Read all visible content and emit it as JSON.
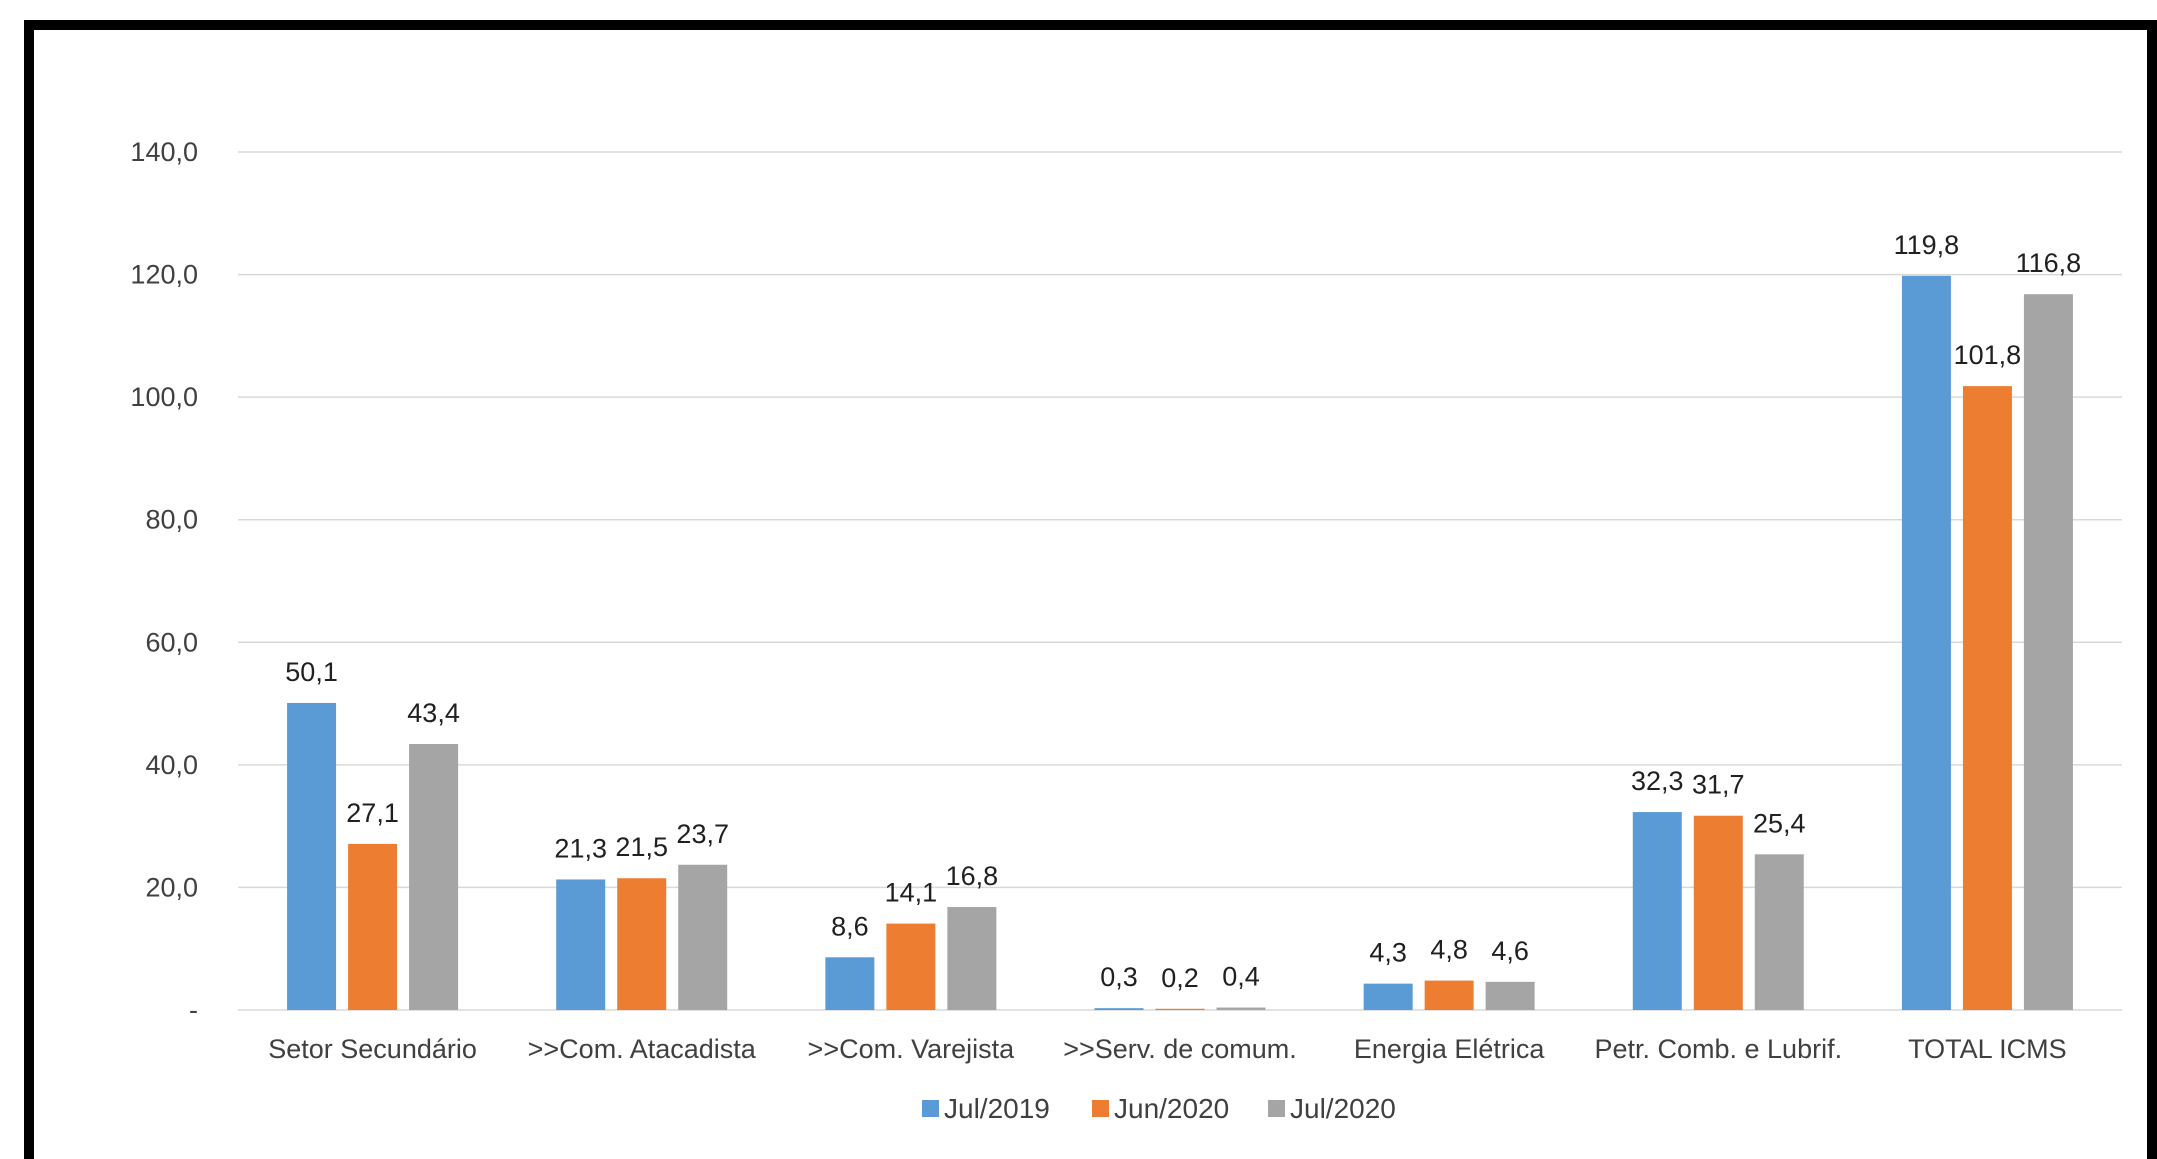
{
  "chart_data": {
    "type": "bar",
    "categories": [
      "Setor Secundário",
      ">>Com. Atacadista",
      ">>Com. Varejista",
      ">>Serv. de comum.",
      "Energia Elétrica",
      "Petr. Comb. e Lubrif.",
      "TOTAL ICMS"
    ],
    "series": [
      {
        "name": "Jul/2019",
        "color": "#5B9BD5",
        "values": [
          50.1,
          21.3,
          8.6,
          0.3,
          4.3,
          32.3,
          119.8
        ],
        "labels": [
          "50,1",
          "21,3",
          "8,6",
          "0,3",
          "4,3",
          "32,3",
          "119,8"
        ]
      },
      {
        "name": "Jun/2020",
        "color": "#ED7D31",
        "values": [
          27.1,
          21.5,
          14.1,
          0.2,
          4.8,
          31.7,
          101.8
        ],
        "labels": [
          "27,1",
          "21,5",
          "14,1",
          "0,2",
          "4,8",
          "31,7",
          "101,8"
        ]
      },
      {
        "name": "Jul/2020",
        "color": "#A5A5A5",
        "values": [
          43.4,
          23.7,
          16.8,
          0.4,
          4.6,
          25.4,
          116.8
        ],
        "labels": [
          "43,4",
          "23,7",
          "16,8",
          "0,4",
          "4,6",
          "25,4",
          "116,8"
        ]
      }
    ],
    "ylim": [
      0,
      140
    ],
    "yticks": [
      0,
      20,
      40,
      60,
      80,
      100,
      120,
      140
    ],
    "ytick_labels": [
      "-",
      "20,0",
      "40,0",
      "60,0",
      "80,0",
      "100,0",
      "120,0",
      "140,0"
    ],
    "grid": true,
    "legend_position": "bottom"
  }
}
